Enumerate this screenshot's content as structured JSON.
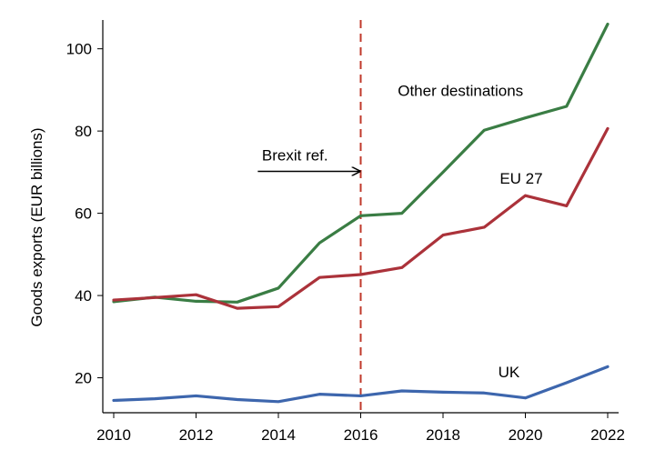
{
  "chart_data": {
    "type": "line",
    "title": "",
    "xlabel": "",
    "ylabel": "Goods exports (EUR billions)",
    "xlim": [
      2010,
      2022
    ],
    "ylim": [
      11.5,
      107
    ],
    "x": [
      2010,
      2011,
      2012,
      2013,
      2014,
      2015,
      2016,
      2017,
      2018,
      2019,
      2020,
      2021,
      2022
    ],
    "x_ticks": [
      2010,
      2012,
      2014,
      2016,
      2018,
      2020,
      2022
    ],
    "y_ticks": [
      20,
      40,
      60,
      80,
      100
    ],
    "grid": false,
    "legend": "none (series labelled directly on lines)",
    "series": [
      {
        "name": "Other destinations",
        "color": "#3a7d44",
        "values": [
          38.5,
          39.6,
          38.6,
          38.4,
          41.8,
          52.8,
          59.4,
          60.0,
          70.0,
          80.2,
          83.2,
          86.0,
          106.0
        ]
      },
      {
        "name": "EU 27",
        "color": "#ab323a",
        "values": [
          38.9,
          39.5,
          40.2,
          36.9,
          37.3,
          44.4,
          45.1,
          46.8,
          54.7,
          56.6,
          64.3,
          61.8,
          80.6
        ]
      },
      {
        "name": "UK",
        "color": "#3d66ad",
        "values": [
          14.5,
          14.9,
          15.6,
          14.7,
          14.2,
          16.0,
          15.6,
          16.8,
          16.5,
          16.3,
          15.1,
          18.8,
          22.7
        ]
      }
    ],
    "annotations": [
      {
        "text": "Brexit ref.",
        "type": "vertical-dashed-line",
        "x": 2016,
        "color": "#c0392b",
        "arrow_from_x": 2013.5,
        "arrow_y": 70.2,
        "label_x": 2013.6,
        "label_y": 72.8
      }
    ]
  }
}
